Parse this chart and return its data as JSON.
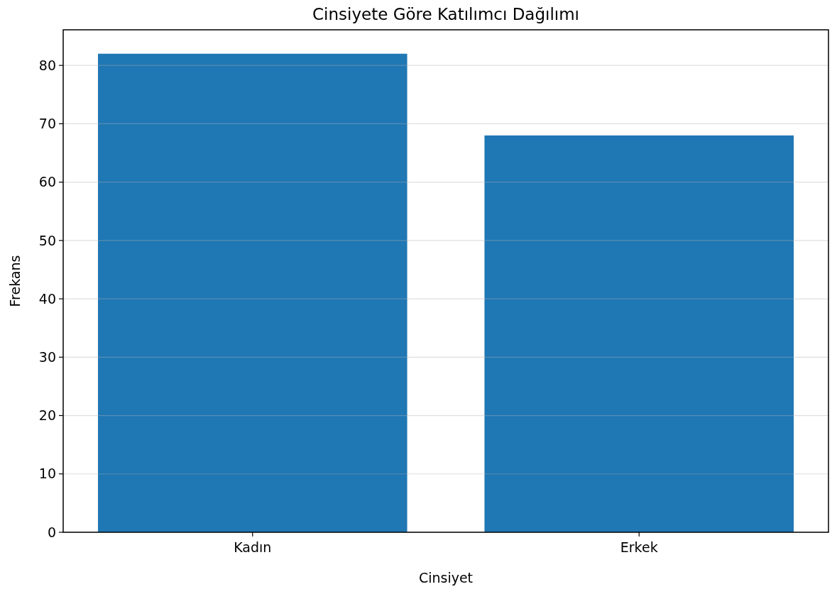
{
  "chart_data": {
    "type": "bar",
    "title": "Cinsiyete Göre Katılımcı Dağılımı",
    "xlabel": "Cinsiyet",
    "ylabel": "Frekans",
    "categories": [
      "Kadın",
      "Erkek"
    ],
    "values": [
      82,
      68
    ],
    "color": "#1f77b4",
    "ylim": [
      0,
      86.1
    ],
    "yticks": [
      0,
      10,
      20,
      30,
      40,
      50,
      60,
      70,
      80
    ],
    "grid": "y"
  }
}
